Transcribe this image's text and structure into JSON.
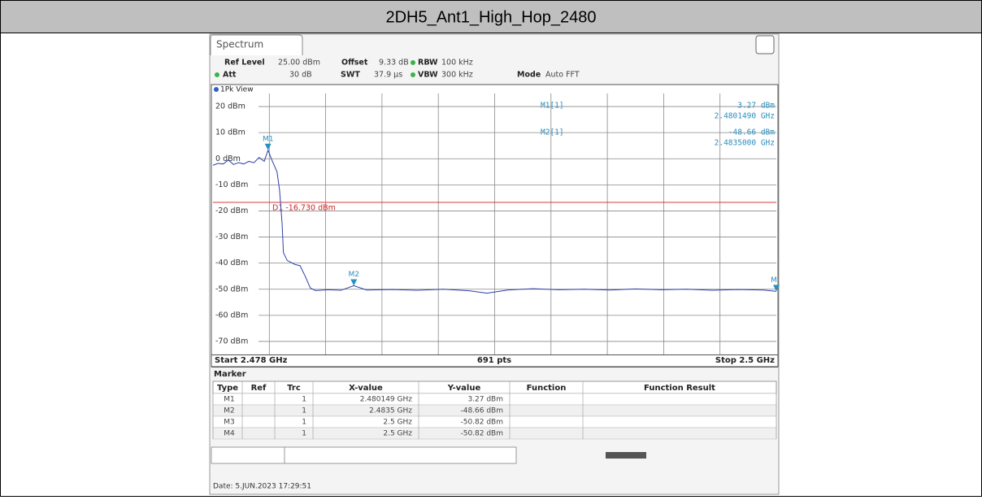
{
  "header": {
    "title": "2DH5_Ant1_High_Hop_2480"
  },
  "instrument": {
    "tab": "Spectrum",
    "settings": [
      {
        "label": "Ref Level",
        "value": "25.00 dBm"
      },
      {
        "label": "Offset",
        "value": "9.33 dB"
      },
      {
        "label": "RBW",
        "value": "100 kHz"
      },
      {
        "label": "Att",
        "value": "30 dB"
      },
      {
        "label": "SWT",
        "value": "37.9 µs"
      },
      {
        "label": "VBW",
        "value": "300 kHz"
      },
      {
        "label": "Mode",
        "value": "Auto FFT"
      }
    ],
    "view": "1Pk View"
  },
  "chart_data": {
    "type": "line",
    "ylim": [
      -75,
      25
    ],
    "xlim": [
      2.478,
      2.5
    ],
    "grid": true,
    "yticks": [
      {
        "value": 20,
        "label": "20 dBm"
      },
      {
        "value": 10,
        "label": "10 dBm"
      },
      {
        "value": 0,
        "label": "0 dBm"
      },
      {
        "value": -10,
        "label": "-10 dBm"
      },
      {
        "value": -20,
        "label": "-20 dBm"
      },
      {
        "value": -30,
        "label": "-30 dBm"
      },
      {
        "value": -40,
        "label": "-40 dBm"
      },
      {
        "value": -50,
        "label": "-50 dBm"
      },
      {
        "value": -60,
        "label": "-60 dBm"
      },
      {
        "value": -70,
        "label": "-70 dBm"
      }
    ],
    "xticks": [
      2.4802,
      2.4824,
      2.4846,
      2.4868,
      2.489,
      2.4912,
      2.4934,
      2.4956,
      2.4978
    ],
    "x_start_label": "Start 2.478 GHz",
    "points_label": "691 pts",
    "x_stop_label": "Stop 2.5 GHz",
    "series": [
      {
        "name": "1Pk",
        "color": "#2b3fa8",
        "x": [
          2.478,
          2.4782,
          2.4784,
          2.4786,
          2.4788,
          2.479,
          2.4792,
          2.4794,
          2.4796,
          2.4798,
          2.48,
          2.48015,
          2.4803,
          2.4805,
          2.4806,
          2.4807,
          2.48075,
          2.4809,
          2.4812,
          2.4814,
          2.4816,
          2.4818,
          2.482,
          2.4825,
          2.483,
          2.4835,
          2.484,
          2.485,
          2.486,
          2.487,
          2.488,
          2.4887,
          2.4895,
          2.4905,
          2.4915,
          2.4925,
          2.4935,
          2.4945,
          2.4955,
          2.4965,
          2.4975,
          2.4985,
          2.4995,
          2.5
        ],
        "values": [
          -2.5,
          -1.8,
          -2.0,
          -0.5,
          -2.2,
          -1.5,
          -2.0,
          -1.0,
          -1.5,
          0.5,
          -1.0,
          3.27,
          -0.5,
          -5.0,
          -12.0,
          -25.0,
          -36.0,
          -39.0,
          -40.5,
          -41.0,
          -45.0,
          -49.5,
          -50.5,
          -50.2,
          -50.4,
          -48.66,
          -50.3,
          -50.1,
          -50.4,
          -50.0,
          -50.6,
          -51.5,
          -50.3,
          -49.8,
          -50.2,
          -50.0,
          -50.3,
          -49.9,
          -50.2,
          -50.0,
          -50.4,
          -50.1,
          -50.3,
          -50.82
        ]
      }
    ],
    "threshold": {
      "label": "D1 -16.730 dBm",
      "value": -16.73,
      "color": "#cc2222"
    },
    "markers": [
      {
        "name": "M1",
        "x": 2.480149,
        "y": 3.27
      },
      {
        "name": "M2",
        "x": 2.4835,
        "y": -48.66
      },
      {
        "name": "M",
        "x": 2.5,
        "y": -50.82
      }
    ],
    "readout": [
      {
        "name": "M1[1]",
        "level": "3.27 dBm",
        "freq": "2.4801490 GHz"
      },
      {
        "name": "M2[1]",
        "level": "-48.66 dBm",
        "freq": "2.4835000 GHz"
      }
    ]
  },
  "table": {
    "title": "Marker",
    "columns": [
      "Type",
      "Ref",
      "Trc",
      "X-value",
      "Y-value",
      "Function",
      "Function Result"
    ],
    "rows": [
      [
        "M1",
        "",
        "1",
        "2.480149 GHz",
        "3.27 dBm",
        "",
        ""
      ],
      [
        "M2",
        "",
        "1",
        "2.4835 GHz",
        "-48.66 dBm",
        "",
        ""
      ],
      [
        "M3",
        "",
        "1",
        "2.5 GHz",
        "-50.82 dBm",
        "",
        ""
      ],
      [
        "M4",
        "",
        "1",
        "2.5 GHz",
        "-50.82 dBm",
        "",
        ""
      ]
    ]
  },
  "footer": {
    "date": "Date: 5.JUN.2023  17:29:51"
  }
}
